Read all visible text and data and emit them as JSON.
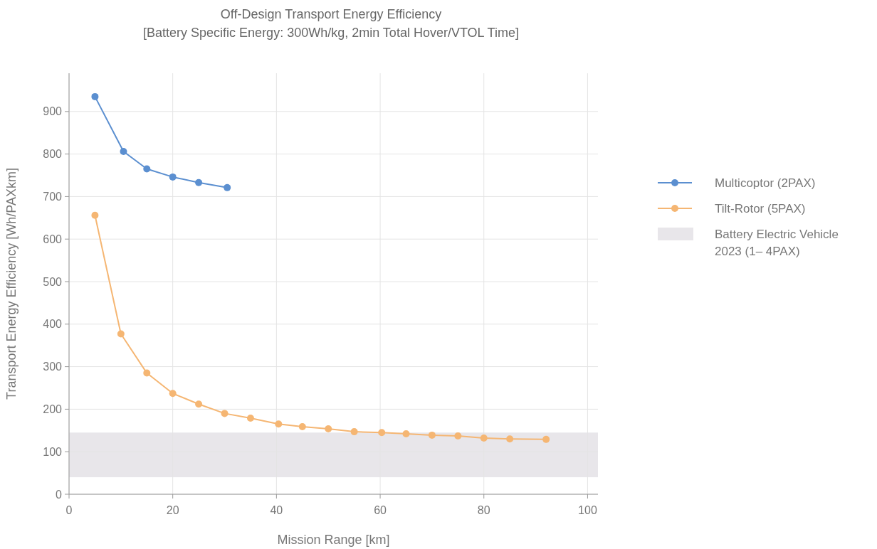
{
  "chart_data": {
    "type": "line",
    "title": "Off-Design Transport Energy Efficiency",
    "subtitle": "[Battery Specific Energy: 300Wh/kg, 2min Total Hover/VTOL Time]",
    "xlabel": "Mission Range [km]",
    "ylabel": "Transport Energy Efficiency [Wh/PAXkm]",
    "xlim": [
      0,
      102
    ],
    "xticks": [
      0,
      20,
      40,
      60,
      80,
      100
    ],
    "ylim": [
      0,
      990
    ],
    "yticks": [
      0,
      100,
      200,
      300,
      400,
      500,
      600,
      700,
      800,
      900
    ],
    "grid": true,
    "legend": "right",
    "marker": "circle",
    "line_style": "solid",
    "series": [
      {
        "name": "Multicoptor (2PAX)",
        "color": "#5b8fd0",
        "x": [
          5,
          10.5,
          15,
          20,
          25,
          30.5
        ],
        "values": [
          935,
          806,
          765,
          746,
          733,
          721
        ]
      },
      {
        "name": "Tilt-Rotor (5PAX)",
        "color": "#f5b673",
        "x": [
          5,
          10,
          15,
          20,
          25,
          30,
          35,
          40.4,
          45,
          50,
          55,
          60.3,
          65,
          70,
          75,
          80,
          85,
          92
        ],
        "values": [
          656,
          377,
          285,
          237,
          212,
          190,
          179,
          165,
          159,
          154,
          147,
          145,
          142,
          139,
          137,
          132,
          130,
          129
        ]
      }
    ],
    "bands": [
      {
        "axis": "y",
        "from": 40,
        "to": 145,
        "label": "Battery Electric Vehicle 2023 (1– 4PAX)",
        "color": "#e8e6ea"
      }
    ]
  }
}
